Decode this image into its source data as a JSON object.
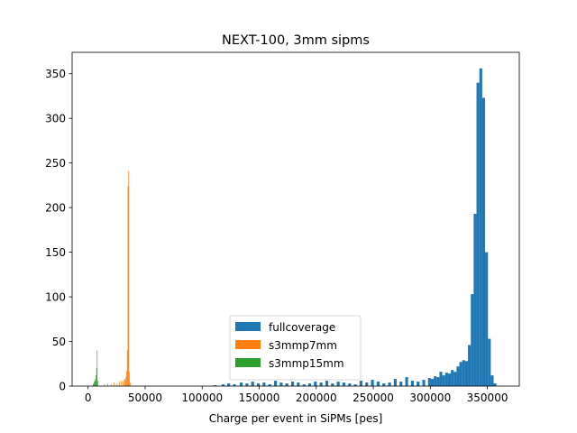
{
  "chart_data": {
    "type": "bar",
    "title": "NEXT-100, 3mm sipms",
    "xlabel": "Charge per event in SiPMs [pes]",
    "ylabel": "",
    "xlim": [
      -14000,
      378000
    ],
    "ylim": [
      0,
      374
    ],
    "xticks": [
      0,
      50000,
      100000,
      150000,
      200000,
      250000,
      300000,
      350000
    ],
    "yticks": [
      0,
      50,
      100,
      150,
      200,
      250,
      300,
      350
    ],
    "grid": false,
    "legend_position": "lower center",
    "series": [
      {
        "name": "fullcoverage",
        "color": "#1f77b4",
        "bins": [
          [
            110000,
            112500,
            1
          ],
          [
            117000,
            119500,
            2
          ],
          [
            122000,
            124500,
            3
          ],
          [
            127000,
            129500,
            2
          ],
          [
            133000,
            135500,
            4
          ],
          [
            138000,
            140500,
            3
          ],
          [
            143000,
            145500,
            5
          ],
          [
            148000,
            150500,
            3
          ],
          [
            153000,
            155500,
            4
          ],
          [
            158000,
            160500,
            2
          ],
          [
            163000,
            165500,
            6
          ],
          [
            168000,
            170500,
            4
          ],
          [
            173000,
            175500,
            3
          ],
          [
            178000,
            180500,
            5
          ],
          [
            183000,
            185500,
            4
          ],
          [
            188000,
            190500,
            2
          ],
          [
            193000,
            195500,
            3
          ],
          [
            198000,
            200500,
            5
          ],
          [
            203000,
            205500,
            4
          ],
          [
            208000,
            210500,
            6
          ],
          [
            213000,
            215500,
            3
          ],
          [
            218000,
            220500,
            5
          ],
          [
            223000,
            225500,
            4
          ],
          [
            228000,
            230500,
            3
          ],
          [
            233000,
            235500,
            2
          ],
          [
            238000,
            240500,
            6
          ],
          [
            243000,
            245500,
            4
          ],
          [
            248000,
            250500,
            7
          ],
          [
            253000,
            255500,
            5
          ],
          [
            258000,
            260500,
            3
          ],
          [
            263000,
            265500,
            4
          ],
          [
            268000,
            270500,
            8
          ],
          [
            273000,
            275500,
            5
          ],
          [
            278000,
            280500,
            10
          ],
          [
            283000,
            285500,
            6
          ],
          [
            288000,
            290500,
            5
          ],
          [
            293000,
            295500,
            7
          ],
          [
            298000,
            300500,
            9
          ],
          [
            300500,
            303000,
            8
          ],
          [
            303000,
            305500,
            11
          ],
          [
            305500,
            308000,
            10
          ],
          [
            308000,
            310500,
            16
          ],
          [
            310500,
            313000,
            12
          ],
          [
            313000,
            315500,
            15
          ],
          [
            315500,
            318000,
            14
          ],
          [
            318000,
            320500,
            18
          ],
          [
            320500,
            323000,
            16
          ],
          [
            323000,
            325500,
            22
          ],
          [
            325500,
            328000,
            27
          ],
          [
            328000,
            330500,
            29
          ],
          [
            330500,
            333000,
            28
          ],
          [
            333000,
            335500,
            46
          ],
          [
            335500,
            338000,
            103
          ],
          [
            338000,
            340500,
            193
          ],
          [
            340500,
            343000,
            340
          ],
          [
            343000,
            345500,
            356
          ],
          [
            345500,
            348000,
            323
          ],
          [
            348000,
            350500,
            150
          ],
          [
            350500,
            353000,
            53
          ],
          [
            353000,
            355500,
            12
          ],
          [
            355500,
            358000,
            3
          ]
        ]
      },
      {
        "name": "s3mmp7mm",
        "color": "#ff7f0e",
        "bins": [
          [
            14000,
            14600,
            2
          ],
          [
            17000,
            17600,
            3
          ],
          [
            20000,
            20600,
            2
          ],
          [
            22500,
            23100,
            4
          ],
          [
            25000,
            25600,
            3
          ],
          [
            27000,
            27600,
            5
          ],
          [
            29000,
            29600,
            6
          ],
          [
            30500,
            31100,
            5
          ],
          [
            31500,
            32100,
            8
          ],
          [
            32300,
            32900,
            7
          ],
          [
            32900,
            33500,
            10
          ],
          [
            33500,
            34100,
            17
          ],
          [
            34100,
            34700,
            40
          ],
          [
            34700,
            35300,
            224
          ],
          [
            35300,
            35900,
            241
          ],
          [
            35900,
            36500,
            16
          ],
          [
            36500,
            37100,
            4
          ]
        ]
      },
      {
        "name": "s3mmp15mm",
        "color": "#2ca02c",
        "bins": [
          [
            4200,
            4700,
            2
          ],
          [
            4700,
            5200,
            3
          ],
          [
            5200,
            5700,
            5
          ],
          [
            5700,
            6200,
            8
          ],
          [
            6200,
            6700,
            6
          ],
          [
            6700,
            7200,
            12
          ],
          [
            7200,
            7700,
            20
          ],
          [
            7700,
            8200,
            40
          ],
          [
            8200,
            8700,
            6
          ]
        ]
      }
    ]
  },
  "icons": {
    "legend_patch": "rectangle-swatch"
  }
}
